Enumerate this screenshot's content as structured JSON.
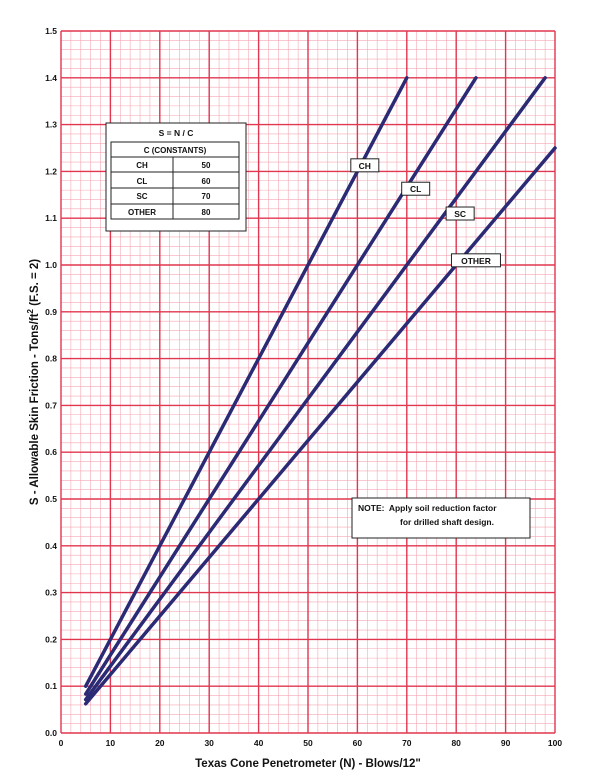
{
  "chart_data": {
    "type": "line",
    "xlabel": "Texas Cone Penetrometer (N) - Blows/12\"",
    "ylabel_main": "S - Allowable Skin Friction - Tons/ft",
    "ylabel_sup": "2",
    "ylabel_tail": " (F.S. = 2)",
    "xlim": [
      0,
      100
    ],
    "ylim": [
      0.0,
      1.5
    ],
    "x_ticks": [
      "0",
      "10",
      "20",
      "30",
      "40",
      "50",
      "60",
      "70",
      "80",
      "90",
      "100"
    ],
    "y_ticks": [
      "0.0",
      "0.1",
      "0.2",
      "0.3",
      "0.4",
      "0.5",
      "0.6",
      "0.7",
      "0.8",
      "0.9",
      "1.0",
      "1.1",
      "1.2",
      "1.3",
      "1.4",
      "1.5"
    ],
    "grid": true,
    "series": [
      {
        "name": "CH",
        "x": [
          5,
          70
        ],
        "y": [
          0.1,
          1.4
        ]
      },
      {
        "name": "CL",
        "x": [
          5,
          84
        ],
        "y": [
          0.0833,
          1.4
        ]
      },
      {
        "name": "SC",
        "x": [
          5,
          98
        ],
        "y": [
          0.0714,
          1.4
        ]
      },
      {
        "name": "OTHER",
        "x": [
          5,
          100
        ],
        "y": [
          0.0625,
          1.25
        ]
      }
    ],
    "series_labels": [
      {
        "text": "CH",
        "x": 61.5,
        "y": 1.213
      },
      {
        "text": "CL",
        "x": 71.8,
        "y": 1.163
      },
      {
        "text": "SC",
        "x": 80.8,
        "y": 1.11
      },
      {
        "text": "OTHER",
        "x": 84.0,
        "y": 1.01
      }
    ],
    "constants_table": {
      "formula": "S = N / C",
      "header": "C (CONSTANTS)",
      "rows": [
        {
          "soil": "CH",
          "value": "50"
        },
        {
          "soil": "CL",
          "value": "60"
        },
        {
          "soil": "SC",
          "value": "70"
        },
        {
          "soil": "OTHER",
          "value": "80"
        }
      ]
    },
    "note": {
      "line1": "NOTE:  Apply soil reduction factor",
      "line2": "for drilled shaft design."
    },
    "colors": {
      "grid_major": "#e0364f",
      "grid_minor": "#f6a7b5",
      "series_line": "#2a2a75",
      "text": "#111111"
    }
  }
}
